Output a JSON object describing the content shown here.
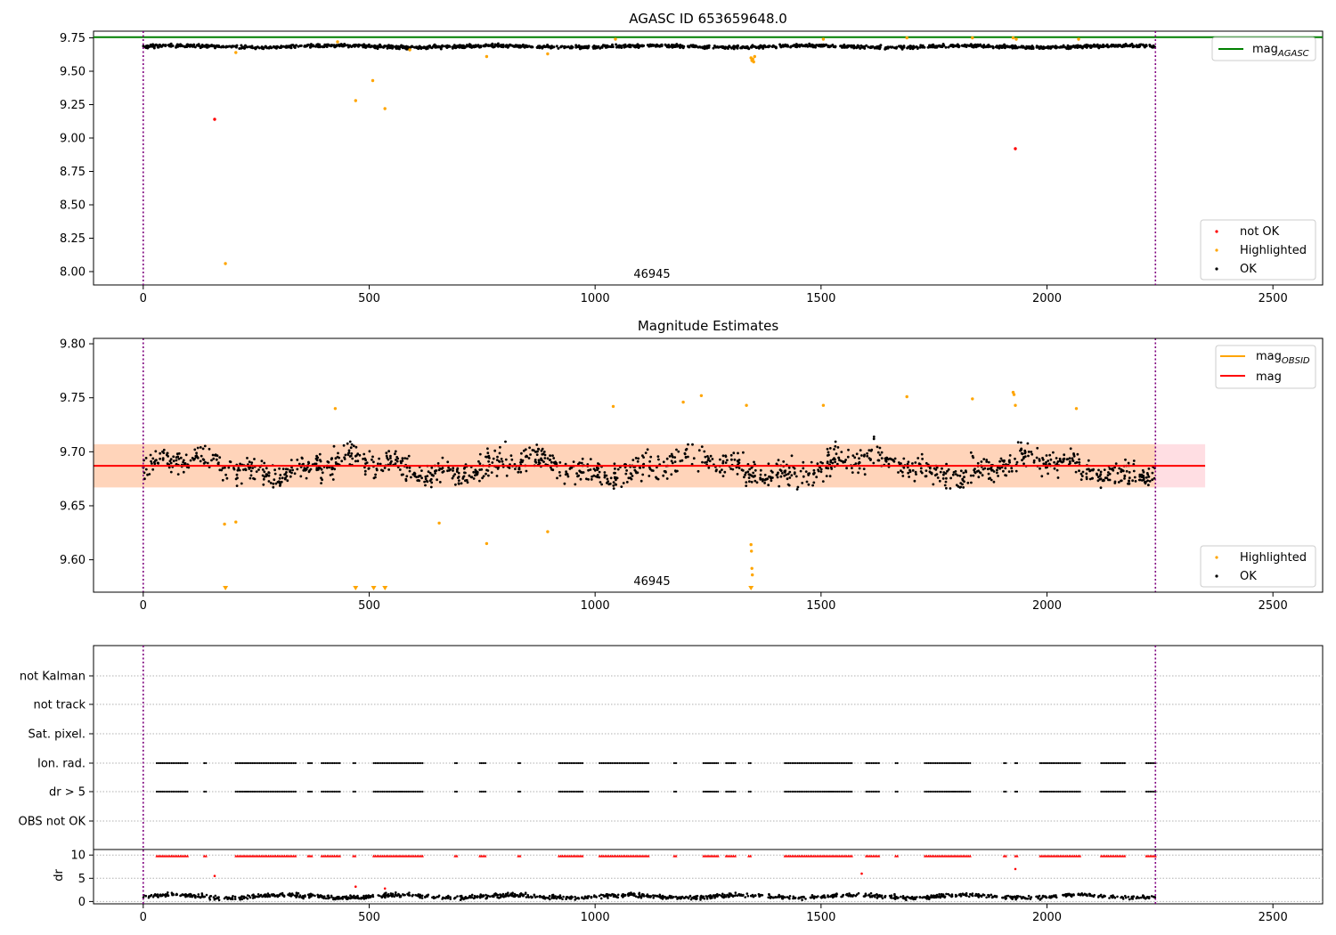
{
  "chart_data": [
    {
      "type": "scatter",
      "title": "AGASC ID 653659648.0",
      "annotation": "46945",
      "xlim": [
        -110,
        2610
      ],
      "ylim": [
        7.9,
        9.8
      ],
      "xticks": [
        0,
        500,
        1000,
        1500,
        2000,
        2500
      ],
      "yticks": [
        8.0,
        8.25,
        8.5,
        8.75,
        9.0,
        9.25,
        9.5,
        9.75
      ],
      "ytick_labels": [
        "8.00",
        "8.25",
        "8.50",
        "8.75",
        "9.00",
        "9.25",
        "9.50",
        "9.75"
      ],
      "vlines": [
        0,
        2240
      ],
      "mag_agasc": 9.755,
      "ok_band": {
        "x": [
          0,
          2240
        ],
        "center": 9.685,
        "amplitude": 0.02
      },
      "legend_upper": {
        "placement": "top-right",
        "entries": [
          {
            "name": "mag",
            "sub": "AGASC",
            "color": "#008000"
          }
        ]
      },
      "legend_lower": {
        "placement": "bottom-right",
        "entries": [
          {
            "name": "not OK",
            "color": "#ff0000"
          },
          {
            "name": "Highlighted",
            "color": "#ffa500"
          },
          {
            "name": "OK",
            "color": "#000000"
          }
        ]
      },
      "series": [
        {
          "name": "not OK",
          "color": "#ff0000",
          "x": [
            158,
            1930
          ],
          "y": [
            9.14,
            8.92
          ]
        },
        {
          "name": "Highlighted",
          "color": "#ffa500",
          "x": [
            182,
            205,
            430,
            470,
            508,
            535,
            590,
            760,
            895,
            1045,
            1345,
            1347,
            1349,
            1351,
            1353,
            1505,
            1690,
            1835,
            1925,
            1932,
            2070
          ],
          "y": [
            8.06,
            9.64,
            9.72,
            9.28,
            9.43,
            9.22,
            9.66,
            9.61,
            9.63,
            9.74,
            9.6,
            9.58,
            9.59,
            9.57,
            9.61,
            9.74,
            9.75,
            9.75,
            9.75,
            9.74,
            9.74
          ]
        }
      ]
    },
    {
      "type": "scatter",
      "title": "Magnitude Estimates",
      "annotation": "46945",
      "xlim": [
        -110,
        2610
      ],
      "ylim": [
        9.57,
        9.805
      ],
      "xticks": [
        0,
        500,
        1000,
        1500,
        2000,
        2500
      ],
      "yticks": [
        9.6,
        9.65,
        9.7,
        9.75,
        9.8
      ],
      "ytick_labels": [
        "9.60",
        "9.65",
        "9.70",
        "9.75",
        "9.80"
      ],
      "vlines": [
        0,
        2240
      ],
      "mag": 9.687,
      "mag_band": [
        9.667,
        9.707
      ],
      "mag_band_x": [
        -110,
        2350
      ],
      "mag_obsid_band_x": [
        -110,
        2240
      ],
      "mag_color": "#ff0000",
      "mag_obsid_color": "#ffa500",
      "ok_band": {
        "x": [
          0,
          2240
        ],
        "center": 9.686,
        "amplitude": 0.022
      },
      "legend_upper": {
        "placement": "top-right",
        "entries": [
          {
            "name": "mag",
            "sub": "OBSID",
            "color": "#ffa500"
          },
          {
            "name": "mag",
            "sub": "",
            "color": "#ff0000"
          }
        ]
      },
      "legend_lower": {
        "placement": "bottom-right",
        "entries": [
          {
            "name": "Highlighted",
            "color": "#ffa500"
          },
          {
            "name": "OK",
            "color": "#000000"
          }
        ]
      },
      "highlighted": {
        "x": [
          180,
          205,
          425,
          760,
          895,
          655,
          1040,
          1195,
          1235,
          1335,
          1345,
          1346,
          1347,
          1348,
          1505,
          1690,
          1835,
          1925,
          1927,
          1930,
          2065
        ],
        "y": [
          9.633,
          9.635,
          9.74,
          9.615,
          9.626,
          9.634,
          9.742,
          9.746,
          9.752,
          9.743,
          9.614,
          9.608,
          9.592,
          9.586,
          9.743,
          9.751,
          9.749,
          9.755,
          9.753,
          9.743,
          9.74
        ]
      },
      "offscale_triangles_x": [
        182,
        470,
        510,
        535,
        1345
      ]
    },
    {
      "type": "scatter",
      "title": "",
      "xlim": [
        -110,
        2610
      ],
      "xticks": [
        0,
        500,
        1000,
        1500,
        2000,
        2500
      ],
      "vlines": [
        0,
        2240
      ],
      "flag_labels": [
        "not Kalman",
        "not track",
        "Sat. pixel.",
        "Ion. rad.",
        "dr > 5",
        "OBS not OK"
      ],
      "flag_intervals": [
        [
          30,
          100
        ],
        [
          135,
          140
        ],
        [
          205,
          340
        ],
        [
          365,
          375
        ],
        [
          395,
          435
        ],
        [
          465,
          470
        ],
        [
          510,
          620
        ],
        [
          690,
          695
        ],
        [
          745,
          760
        ],
        [
          830,
          835
        ],
        [
          920,
          975
        ],
        [
          1010,
          1120
        ],
        [
          1175,
          1180
        ],
        [
          1240,
          1275
        ],
        [
          1290,
          1310
        ],
        [
          1340,
          1345
        ],
        [
          1420,
          1570
        ],
        [
          1600,
          1630
        ],
        [
          1665,
          1670
        ],
        [
          1730,
          1830
        ],
        [
          1905,
          1910
        ],
        [
          1930,
          1935
        ],
        [
          1985,
          2075
        ],
        [
          2120,
          2175
        ],
        [
          2220,
          2240
        ]
      ],
      "dr": {
        "ylabel": "dr",
        "yticks": [
          0,
          5,
          10
        ],
        "ytick_labels": [
          "0",
          "5",
          "10"
        ],
        "ylim": [
          -0.5,
          11
        ],
        "baseline": 1.1,
        "cap": 9.8,
        "outliers": {
          "x": [
            158,
            470,
            535,
            1590,
            1930
          ],
          "y": [
            5.5,
            3.2,
            2.8,
            6.0,
            7.0
          ]
        }
      }
    }
  ]
}
